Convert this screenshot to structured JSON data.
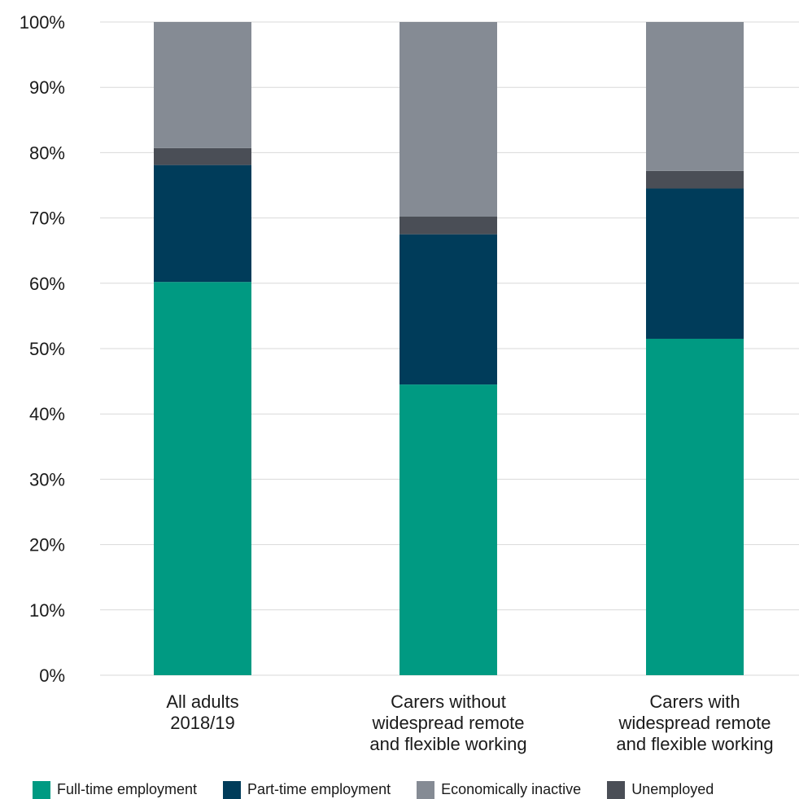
{
  "chart_data": {
    "type": "bar",
    "stacked": true,
    "title": "",
    "xlabel": "",
    "ylabel": "",
    "ylim": [
      0,
      100
    ],
    "y_ticks": [
      "0%",
      "10%",
      "20%",
      "30%",
      "40%",
      "50%",
      "60%",
      "70%",
      "80%",
      "90%",
      "100%"
    ],
    "grid": true,
    "legend_position": "bottom",
    "categories": [
      [
        "All adults",
        "2018/19"
      ],
      [
        "Carers without",
        "widespread remote",
        "and flexible working"
      ],
      [
        "Carers with",
        "widespread remote",
        "and flexible working"
      ]
    ],
    "series": [
      {
        "name": "Full-time employment",
        "color": "#009a82",
        "values": [
          60.2,
          44.5,
          51.5
        ]
      },
      {
        "name": "Part-time employment",
        "color": "#003c5a",
        "values": [
          17.9,
          23.0,
          23.0
        ]
      },
      {
        "name": "Unemployed",
        "color": "#4a4e56",
        "values": [
          2.6,
          2.7,
          2.7
        ]
      },
      {
        "name": "Economically inactive",
        "color": "#858b94",
        "values": [
          19.3,
          29.8,
          22.8
        ]
      }
    ],
    "legend_order": [
      "Full-time employment",
      "Part-time employment",
      "Economically inactive",
      "Unemployed"
    ]
  }
}
